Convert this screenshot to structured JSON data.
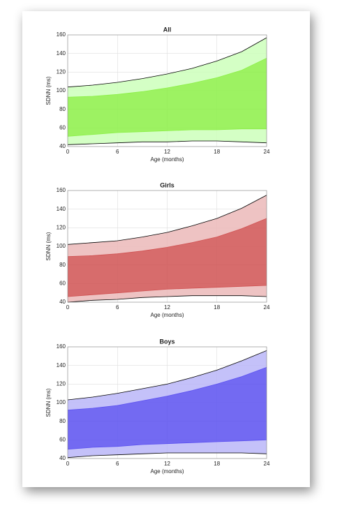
{
  "chart_data": [
    {
      "type": "band",
      "title": "All",
      "x_label": "Age (months)",
      "y_label": "SDNN (ms)",
      "x": [
        0,
        3,
        6,
        9,
        12,
        15,
        18,
        21,
        24
      ],
      "series": [
        {
          "color": "#000000",
          "values": [
            42,
            43,
            44,
            45,
            45,
            46,
            46,
            45,
            44
          ]
        },
        {
          "color": "#8cf046",
          "values": [
            51,
            53,
            55,
            56,
            57,
            58,
            58,
            59,
            59
          ]
        },
        {
          "color": "#8cf046",
          "values": [
            93,
            94,
            96,
            99,
            103,
            108,
            114,
            122,
            135
          ]
        },
        {
          "color": "#000000",
          "values": [
            104,
            106,
            109,
            113,
            118,
            124,
            132,
            142,
            157
          ]
        }
      ],
      "fill_colors": [
        "#ccffbb",
        "#8cf046",
        "#ccffbb"
      ],
      "xlim": [
        0,
        24
      ],
      "xticks": [
        0,
        6,
        12,
        18,
        24
      ],
      "ylim": [
        40,
        160
      ],
      "yticks": [
        40,
        60,
        80,
        100,
        120,
        140,
        160
      ],
      "grid": true
    },
    {
      "type": "band",
      "title": "Girls",
      "x_label": "Age (months)",
      "y_label": "SDNN (ms)",
      "x": [
        0,
        3,
        6,
        9,
        12,
        15,
        18,
        21,
        24
      ],
      "series": [
        {
          "color": "#000000",
          "values": [
            40,
            42,
            43,
            45,
            46,
            47,
            47,
            47,
            46
          ]
        },
        {
          "color": "#d05252",
          "values": [
            46,
            48,
            50,
            52,
            54,
            55,
            56,
            57,
            58
          ]
        },
        {
          "color": "#d05252",
          "values": [
            89,
            90,
            92,
            95,
            99,
            104,
            110,
            119,
            130
          ]
        },
        {
          "color": "#000000",
          "values": [
            102,
            104,
            106,
            110,
            115,
            122,
            130,
            141,
            155
          ]
        }
      ],
      "fill_colors": [
        "#ebb8b8",
        "#d05252",
        "#ebb8b8"
      ],
      "xlim": [
        0,
        24
      ],
      "xticks": [
        0,
        6,
        12,
        18,
        24
      ],
      "ylim": [
        40,
        160
      ],
      "yticks": [
        40,
        60,
        80,
        100,
        120,
        140,
        160
      ],
      "grid": true
    },
    {
      "type": "band",
      "title": "Boys",
      "x_label": "Age (months)",
      "y_label": "SDNN (ms)",
      "x": [
        0,
        3,
        6,
        9,
        12,
        15,
        18,
        21,
        24
      ],
      "series": [
        {
          "color": "#000000",
          "values": [
            41,
            43,
            44,
            45,
            46,
            46,
            46,
            46,
            45
          ]
        },
        {
          "color": "#5a50f0",
          "values": [
            50,
            52,
            53,
            55,
            56,
            57,
            58,
            59,
            60
          ]
        },
        {
          "color": "#5a50f0",
          "values": [
            92,
            94,
            97,
            102,
            107,
            113,
            120,
            128,
            138
          ]
        },
        {
          "color": "#000000",
          "values": [
            103,
            106,
            110,
            115,
            120,
            127,
            135,
            145,
            156
          ]
        }
      ],
      "fill_colors": [
        "#bab6f8",
        "#5a50f0",
        "#bab6f8"
      ],
      "xlim": [
        0,
        24
      ],
      "xticks": [
        0,
        6,
        12,
        18,
        24
      ],
      "ylim": [
        40,
        160
      ],
      "yticks": [
        40,
        60,
        80,
        100,
        120,
        140,
        160
      ],
      "grid": true
    }
  ]
}
